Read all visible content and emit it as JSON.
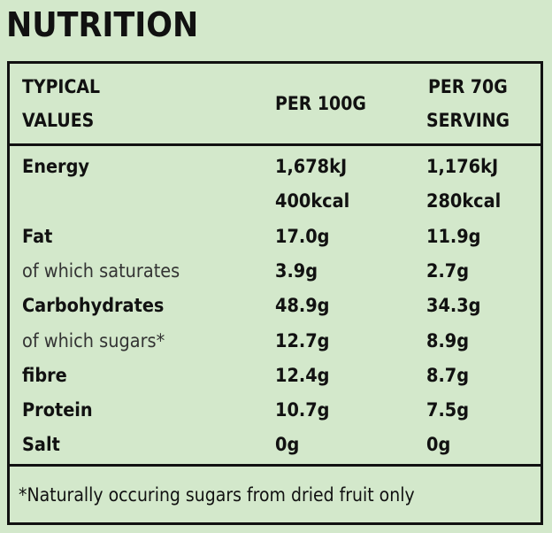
{
  "title": "NUTRITION",
  "header": {
    "col1_line1": "TYPICAL",
    "col1_line2": "VALUES",
    "col2": "PER 100G",
    "col3_line1": "PER 70G",
    "col3_line2": "SERVING"
  },
  "rows": [
    {
      "label": "Energy",
      "per100": "1,678kJ",
      "serving": "1,176kJ",
      "style": "bold"
    },
    {
      "label": "",
      "per100": "400kcal",
      "serving": "280kcal",
      "style": "bold"
    },
    {
      "label": "Fat",
      "per100": "17.0g",
      "serving": "11.9g",
      "style": "bold"
    },
    {
      "label": "of which saturates",
      "per100": "3.9g",
      "serving": "2.7g",
      "style": "light"
    },
    {
      "label": "Carbohydrates",
      "per100": "48.9g",
      "serving": "34.3g",
      "style": "bold"
    },
    {
      "label": "of which sugars*",
      "per100": "12.7g",
      "serving": "8.9g",
      "style": "light"
    },
    {
      "label": "fibre",
      "per100": "12.4g",
      "serving": "8.7g",
      "style": "bold"
    },
    {
      "label": "Protein",
      "per100": "10.7g",
      "serving": "7.5g",
      "style": "bold"
    },
    {
      "label": "Salt",
      "per100": "0g",
      "serving": "0g",
      "style": "bold"
    }
  ],
  "footnote": "*Naturally occuring sugars from dried fruit only",
  "colors": {
    "background": "#d3e8cb",
    "text": "#111111"
  }
}
